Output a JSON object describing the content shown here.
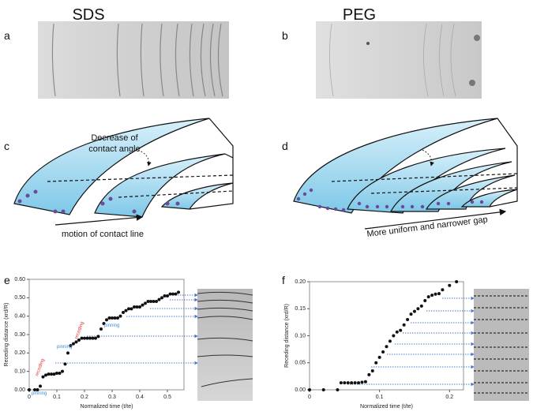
{
  "headers": [
    "SDS",
    "PEG"
  ],
  "panels": {
    "a": "a",
    "b": "b",
    "c": "c",
    "d": "d",
    "e": "e",
    "f": "f"
  },
  "diagram_c": {
    "annotation_top_1": "Decrease of",
    "annotation_top_2": "contact angle",
    "annotation_bottom": "motion of contact line"
  },
  "diagram_d": {
    "annotation_bottom": "More uniform and narrower gap"
  },
  "chart_data": [
    {
      "type": "scatter",
      "x_label": "Normalized time (t/te)",
      "y_label": "Receding distance (xrd/R)",
      "color": "#111111",
      "x": [
        0,
        0.02,
        0.03,
        0.04,
        0.05,
        0.06,
        0.07,
        0.08,
        0.09,
        0.1,
        0.11,
        0.12,
        0.13,
        0.14,
        0.15,
        0.16,
        0.17,
        0.18,
        0.19,
        0.2,
        0.21,
        0.22,
        0.23,
        0.24,
        0.25,
        0.26,
        0.27,
        0.28,
        0.29,
        0.3,
        0.31,
        0.32,
        0.33,
        0.34,
        0.35,
        0.36,
        0.37,
        0.38,
        0.39,
        0.4,
        0.41,
        0.42,
        0.43,
        0.44,
        0.45,
        0.46,
        0.47,
        0.48,
        0.49,
        0.5,
        0.51,
        0.52,
        0.53,
        0.54
      ],
      "values": [
        0,
        0,
        0,
        0.02,
        0.07,
        0.08,
        0.085,
        0.085,
        0.085,
        0.09,
        0.09,
        0.1,
        0.14,
        0.2,
        0.24,
        0.25,
        0.26,
        0.27,
        0.28,
        0.28,
        0.28,
        0.28,
        0.28,
        0.28,
        0.29,
        0.33,
        0.36,
        0.38,
        0.39,
        0.39,
        0.39,
        0.39,
        0.4,
        0.42,
        0.43,
        0.44,
        0.44,
        0.45,
        0.45,
        0.45,
        0.46,
        0.47,
        0.48,
        0.48,
        0.48,
        0.48,
        0.49,
        0.5,
        0.51,
        0.51,
        0.52,
        0.52,
        0.52,
        0.53
      ],
      "xlim": [
        0,
        0.56
      ],
      "ylim": [
        0,
        0.6
      ],
      "xticks": [
        0,
        {
          "value": 0.1,
          "label": "0.1"
        },
        {
          "value": 0.2,
          "label": "0.2"
        },
        {
          "value": 0.3,
          "label": "0.3"
        },
        {
          "value": 0.4,
          "label": "0.4"
        },
        {
          "value": 0.5,
          "label": "0.5"
        }
      ],
      "yticks": [
        {
          "value": 0,
          "label": "0.00"
        },
        {
          "value": 0.1,
          "label": "0.10"
        },
        {
          "value": 0.2,
          "label": "0.20"
        },
        {
          "value": 0.3,
          "label": "0.30"
        },
        {
          "value": 0.4,
          "label": "0.40"
        },
        {
          "value": 0.5,
          "label": "0.50"
        },
        {
          "value": 0.6,
          "label": "0.60"
        }
      ],
      "annotations": [
        {
          "text": "pinning",
          "color": "#3a8fd8"
        },
        {
          "text": "receding",
          "color": "#e03030"
        },
        {
          "text": "pinning",
          "color": "#3a8fd8"
        },
        {
          "text": "receding",
          "color": "#e03030"
        },
        {
          "text": "pinning",
          "color": "#3a8fd8"
        }
      ]
    },
    {
      "type": "scatter",
      "x_label": "Normalized time (t/te)",
      "y_label": "Receding distance (xrd/R)",
      "color": "#111111",
      "x": [
        0,
        0.02,
        0.04,
        0.045,
        0.05,
        0.055,
        0.06,
        0.065,
        0.07,
        0.075,
        0.08,
        0.085,
        0.09,
        0.095,
        0.1,
        0.105,
        0.11,
        0.115,
        0.12,
        0.125,
        0.13,
        0.135,
        0.14,
        0.145,
        0.15,
        0.155,
        0.16,
        0.165,
        0.17,
        0.175,
        0.18,
        0.185,
        0.19,
        0.2,
        0.21
      ],
      "values": [
        0,
        0,
        0,
        0.013,
        0.013,
        0.013,
        0.013,
        0.013,
        0.013,
        0.014,
        0.015,
        0.028,
        0.035,
        0.05,
        0.06,
        0.07,
        0.08,
        0.09,
        0.1,
        0.107,
        0.11,
        0.12,
        0.13,
        0.14,
        0.145,
        0.15,
        0.155,
        0.165,
        0.172,
        0.175,
        0.177,
        0.178,
        0.185,
        0.193,
        0.2
      ],
      "xlim": [
        0,
        0.22
      ],
      "ylim": [
        0,
        0.2
      ],
      "xticks": [
        0,
        {
          "value": 0.1,
          "label": "0.1"
        },
        {
          "value": 0.2,
          "label": "0.2"
        }
      ],
      "yticks": [
        {
          "value": 0,
          "label": "0.00"
        },
        {
          "value": 0.05,
          "label": "0.05"
        },
        {
          "value": 0.1,
          "label": "0.10"
        },
        {
          "value": 0.15,
          "label": "0.15"
        },
        {
          "value": 0.2,
          "label": "0.20"
        }
      ]
    }
  ]
}
